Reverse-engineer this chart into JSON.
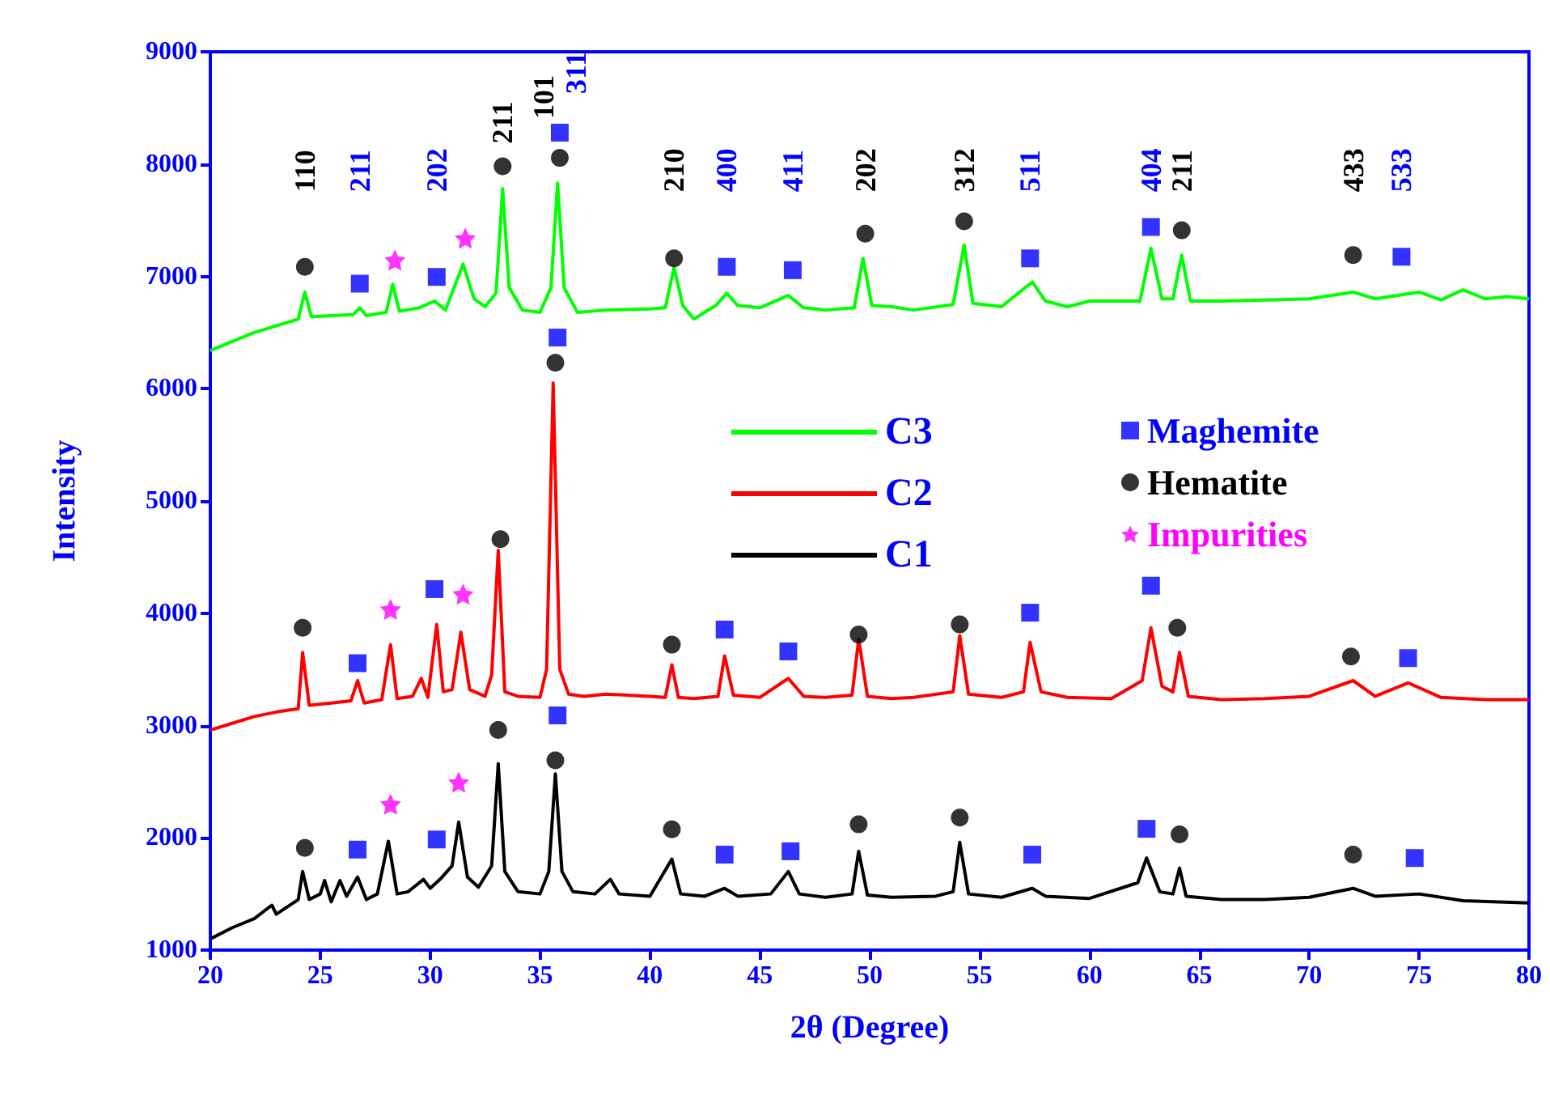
{
  "chart_data": {
    "type": "line",
    "xlabel": "2θ (Degree)",
    "ylabel": "Intensity",
    "xlim": [
      20,
      80
    ],
    "xticks": [
      20,
      25,
      30,
      35,
      40,
      45,
      50,
      55,
      60,
      65,
      70,
      75,
      80
    ],
    "ylim": [
      1000,
      9000
    ],
    "yticks": [
      1000,
      2000,
      3000,
      4000,
      5000,
      6000,
      7000,
      8000,
      9000
    ],
    "grid": false,
    "legend": "top right",
    "series": [
      {
        "name": "C3",
        "color": "#00ff00",
        "x": [
          20,
          21,
          22,
          23,
          24,
          24.3,
          24.6,
          25.5,
          26.5,
          26.8,
          27.1,
          28,
          28.3,
          28.6,
          29.5,
          30.2,
          30.7,
          31.5,
          32,
          32.5,
          33,
          33.3,
          33.6,
          34.2,
          35,
          35.5,
          35.8,
          36.1,
          36.7,
          38,
          40,
          40.7,
          41.1,
          41.5,
          42,
          43,
          43.5,
          44,
          45,
          46.3,
          47,
          48,
          49.3,
          49.7,
          50.1,
          51,
          52,
          53.8,
          54.3,
          54.7,
          56,
          57.4,
          58,
          59,
          60,
          62.3,
          62.8,
          63.3,
          63.8,
          64.2,
          64.6,
          66,
          68,
          70,
          72,
          73,
          75,
          76,
          77,
          78,
          79,
          80
        ],
        "values": [
          6340,
          6420,
          6500,
          6560,
          6620,
          6860,
          6640,
          6650,
          6660,
          6720,
          6650,
          6680,
          6930,
          6690,
          6720,
          6780,
          6700,
          7110,
          6800,
          6730,
          6850,
          7780,
          6900,
          6700,
          6680,
          6900,
          7830,
          6900,
          6680,
          6700,
          6710,
          6720,
          7080,
          6740,
          6620,
          6740,
          6850,
          6740,
          6720,
          6830,
          6720,
          6700,
          6720,
          7160,
          6740,
          6730,
          6700,
          6750,
          7280,
          6760,
          6730,
          6950,
          6780,
          6730,
          6780,
          6780,
          7250,
          6800,
          6800,
          7190,
          6780,
          6780,
          6790,
          6800,
          6860,
          6800,
          6860,
          6790,
          6880,
          6800,
          6820,
          6800
        ]
      },
      {
        "name": "C2",
        "color": "#ff0000",
        "x": [
          20,
          21,
          22,
          23,
          24,
          24.2,
          24.5,
          25.5,
          26.4,
          26.7,
          27,
          27.8,
          28.2,
          28.5,
          29.2,
          29.6,
          29.9,
          30.3,
          30.6,
          31,
          31.4,
          31.8,
          32.5,
          32.8,
          33.1,
          33.4,
          34,
          35,
          35.3,
          35.6,
          35.9,
          36.3,
          37,
          38,
          40,
          40.7,
          41,
          41.3,
          42,
          43.1,
          43.4,
          43.8,
          45,
          46.3,
          47,
          48,
          49.2,
          49.5,
          49.9,
          51,
          52,
          53.8,
          54.1,
          54.5,
          56,
          57,
          57.3,
          57.8,
          59,
          61,
          62.4,
          62.8,
          63.3,
          63.8,
          64.1,
          64.5,
          66,
          68,
          70,
          72,
          73,
          74.5,
          76,
          78,
          80
        ],
        "values": [
          2960,
          3020,
          3080,
          3120,
          3150,
          3650,
          3180,
          3200,
          3220,
          3400,
          3200,
          3230,
          3720,
          3240,
          3260,
          3420,
          3250,
          3900,
          3300,
          3320,
          3830,
          3320,
          3260,
          3450,
          4560,
          3300,
          3260,
          3250,
          3500,
          6050,
          3500,
          3280,
          3260,
          3280,
          3260,
          3250,
          3540,
          3250,
          3240,
          3260,
          3620,
          3270,
          3250,
          3420,
          3260,
          3250,
          3270,
          3770,
          3260,
          3240,
          3250,
          3300,
          3800,
          3280,
          3250,
          3300,
          3740,
          3300,
          3250,
          3240,
          3400,
          3870,
          3350,
          3300,
          3650,
          3260,
          3230,
          3240,
          3260,
          3400,
          3260,
          3380,
          3250,
          3230,
          3230
        ]
      },
      {
        "name": "C1",
        "color": "#000000",
        "x": [
          20,
          21,
          22,
          22.8,
          23,
          24,
          24.2,
          24.5,
          25,
          25.2,
          25.5,
          25.9,
          26.2,
          26.7,
          27.1,
          27.6,
          28.1,
          28.5,
          29,
          29.7,
          30,
          30.5,
          31,
          31.3,
          31.7,
          32.2,
          32.8,
          33.1,
          33.4,
          34,
          35,
          35.4,
          35.7,
          36,
          36.5,
          37.5,
          38.2,
          38.6,
          40,
          41,
          41.4,
          42.5,
          43.4,
          44,
          45.5,
          46.3,
          46.8,
          48,
          49.2,
          49.5,
          49.9,
          51,
          53,
          53.8,
          54.1,
          54.5,
          56,
          57.4,
          58,
          60,
          62.2,
          62.6,
          63.2,
          63.8,
          64.1,
          64.4,
          66,
          68,
          70,
          72,
          73,
          75,
          77,
          80
        ],
        "values": [
          1100,
          1200,
          1280,
          1400,
          1320,
          1450,
          1700,
          1450,
          1500,
          1620,
          1430,
          1620,
          1480,
          1650,
          1450,
          1500,
          1970,
          1500,
          1520,
          1630,
          1550,
          1640,
          1750,
          2140,
          1650,
          1560,
          1750,
          2660,
          1700,
          1520,
          1500,
          1700,
          2570,
          1700,
          1520,
          1500,
          1630,
          1500,
          1480,
          1810,
          1500,
          1480,
          1550,
          1480,
          1500,
          1700,
          1500,
          1470,
          1500,
          1880,
          1490,
          1470,
          1480,
          1520,
          1960,
          1500,
          1470,
          1550,
          1480,
          1460,
          1600,
          1820,
          1520,
          1500,
          1730,
          1480,
          1450,
          1450,
          1470,
          1550,
          1480,
          1500,
          1440,
          1420
        ]
      },
      {
        "name": "Maghemite",
        "type": "scatter",
        "marker": "square",
        "color": "#0000ff",
        "x": [
          26.8,
          30.3,
          35.9,
          43.5,
          46.5,
          57.3,
          62.8,
          74.2,
          26.7,
          30.2,
          35.8,
          43.4,
          46.3,
          57.3,
          62.8,
          74.5,
          26.7,
          30.3,
          35.8,
          43.4,
          46.4,
          57.4,
          62.6,
          74.8
        ],
        "values": [
          6935,
          6995,
          8280,
          7085,
          7055,
          7160,
          7440,
          7175,
          3555,
          4215,
          6455,
          3855,
          3660,
          4005,
          4245,
          3600,
          1895,
          1985,
          3090,
          1850,
          1880,
          1850,
          2080,
          1820
        ]
      },
      {
        "name": "Hematite",
        "type": "scatter",
        "marker": "circle",
        "color": "#000000",
        "x": [
          24.3,
          33.3,
          35.9,
          41.1,
          49.8,
          54.3,
          64.2,
          72,
          24.2,
          33.2,
          35.7,
          41,
          49.5,
          54.1,
          64,
          71.9,
          24.3,
          33.1,
          35.7,
          41,
          49.5,
          54.1,
          64.1,
          72
        ],
        "values": [
          7085,
          7980,
          8055,
          7160,
          7380,
          7490,
          7410,
          7190,
          3870,
          4660,
          6230,
          3720,
          3810,
          3900,
          3870,
          3615,
          1910,
          2960,
          2690,
          2075,
          2120,
          2180,
          2030,
          1850
        ]
      },
      {
        "name": "Impurities",
        "type": "scatter",
        "marker": "star",
        "color": "#ff00ff",
        "x": [
          28.4,
          31.6,
          28.2,
          31.5,
          28.2,
          31.3
        ],
        "values": [
          7145,
          7340,
          4035,
          4170,
          2300,
          2495
        ]
      }
    ],
    "annotations": [
      "110",
      "211",
      "202",
      "211",
      "101",
      "311",
      "210",
      "400",
      "411",
      "202",
      "312",
      "511",
      "404",
      "211",
      "433",
      "533"
    ]
  }
}
